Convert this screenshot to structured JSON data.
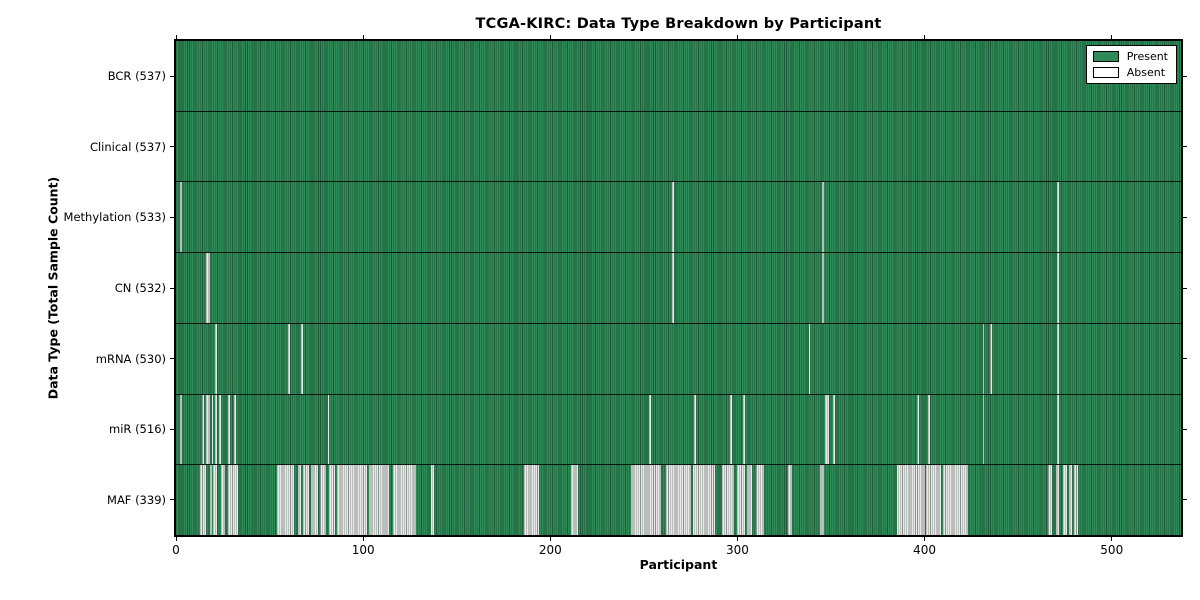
{
  "title": "TCGA-KIRC: Data Type Breakdown by Participant",
  "xlabel": "Participant",
  "ylabel": "Data Type (Total Sample Count)",
  "legend": {
    "present_label": "Present",
    "absent_label": "Absent"
  },
  "colors": {
    "present": "#2E8B57",
    "absent": "#e9e9e9",
    "border": "#000000",
    "background": "#ffffff"
  },
  "x_ticks": [
    0,
    100,
    200,
    300,
    400,
    500
  ],
  "chart_data": {
    "type": "heatmap",
    "title": "TCGA-KIRC: Data Type Breakdown by Participant",
    "xlabel": "Participant",
    "ylabel": "Data Type (Total Sample Count)",
    "legend_position": "upper right",
    "x_range": [
      0,
      537
    ],
    "total_participants": 537,
    "cell_states": [
      "Present",
      "Absent"
    ],
    "rows": [
      {
        "name": "BCR",
        "label": "BCR (537)",
        "present_count": 537,
        "absent_count": 0,
        "absent_runs": []
      },
      {
        "name": "Clinical",
        "label": "Clinical (537)",
        "present_count": 537,
        "absent_count": 0,
        "absent_runs": []
      },
      {
        "name": "Methylation",
        "label": "Methylation (533)",
        "present_count": 533,
        "absent_count": 4,
        "absent_runs": [
          [
            2,
            2
          ],
          [
            265,
            265
          ],
          [
            345,
            345
          ],
          [
            471,
            471
          ]
        ]
      },
      {
        "name": "CN",
        "label": "CN (532)",
        "present_count": 532,
        "absent_count": 5,
        "absent_runs": [
          [
            16,
            17
          ],
          [
            265,
            265
          ],
          [
            345,
            345
          ],
          [
            471,
            471
          ]
        ]
      },
      {
        "name": "mRNA",
        "label": "mRNA (530)",
        "present_count": 530,
        "absent_count": 7,
        "absent_runs": [
          [
            21,
            21
          ],
          [
            60,
            60
          ],
          [
            67,
            67
          ],
          [
            338,
            338
          ],
          [
            431,
            431
          ],
          [
            435,
            435
          ],
          [
            471,
            471
          ]
        ]
      },
      {
        "name": "miR",
        "label": "miR (516)",
        "present_count": 516,
        "absent_count": 21,
        "absent_runs": [
          [
            2,
            2
          ],
          [
            14,
            14
          ],
          [
            16,
            17
          ],
          [
            19,
            19
          ],
          [
            21,
            21
          ],
          [
            23,
            23
          ],
          [
            28,
            28
          ],
          [
            31,
            31
          ],
          [
            81,
            81
          ],
          [
            253,
            253
          ],
          [
            277,
            277
          ],
          [
            296,
            296
          ],
          [
            303,
            303
          ],
          [
            347,
            348
          ],
          [
            351,
            351
          ],
          [
            396,
            396
          ],
          [
            402,
            402
          ],
          [
            431,
            431
          ],
          [
            471,
            471
          ]
        ]
      },
      {
        "name": "MAF",
        "label": "MAF (339)",
        "present_count": 339,
        "absent_count": 198,
        "absent_runs": [
          [
            13,
            15
          ],
          [
            18,
            18
          ],
          [
            20,
            21
          ],
          [
            24,
            25
          ],
          [
            28,
            32
          ],
          [
            54,
            62
          ],
          [
            65,
            66
          ],
          [
            68,
            70
          ],
          [
            72,
            75
          ],
          [
            77,
            79
          ],
          [
            82,
            84
          ],
          [
            86,
            101
          ],
          [
            103,
            113
          ],
          [
            116,
            127
          ],
          [
            136,
            137
          ],
          [
            186,
            193
          ],
          [
            211,
            214
          ],
          [
            243,
            258
          ],
          [
            262,
            274
          ],
          [
            276,
            287
          ],
          [
            292,
            297
          ],
          [
            300,
            303
          ],
          [
            305,
            307
          ],
          [
            310,
            313
          ],
          [
            327,
            328
          ],
          [
            344,
            345
          ],
          [
            385,
            399
          ],
          [
            401,
            408
          ],
          [
            410,
            422
          ],
          [
            466,
            467
          ],
          [
            470,
            471
          ],
          [
            474,
            475
          ],
          [
            477,
            478
          ],
          [
            480,
            481
          ]
        ]
      }
    ]
  }
}
